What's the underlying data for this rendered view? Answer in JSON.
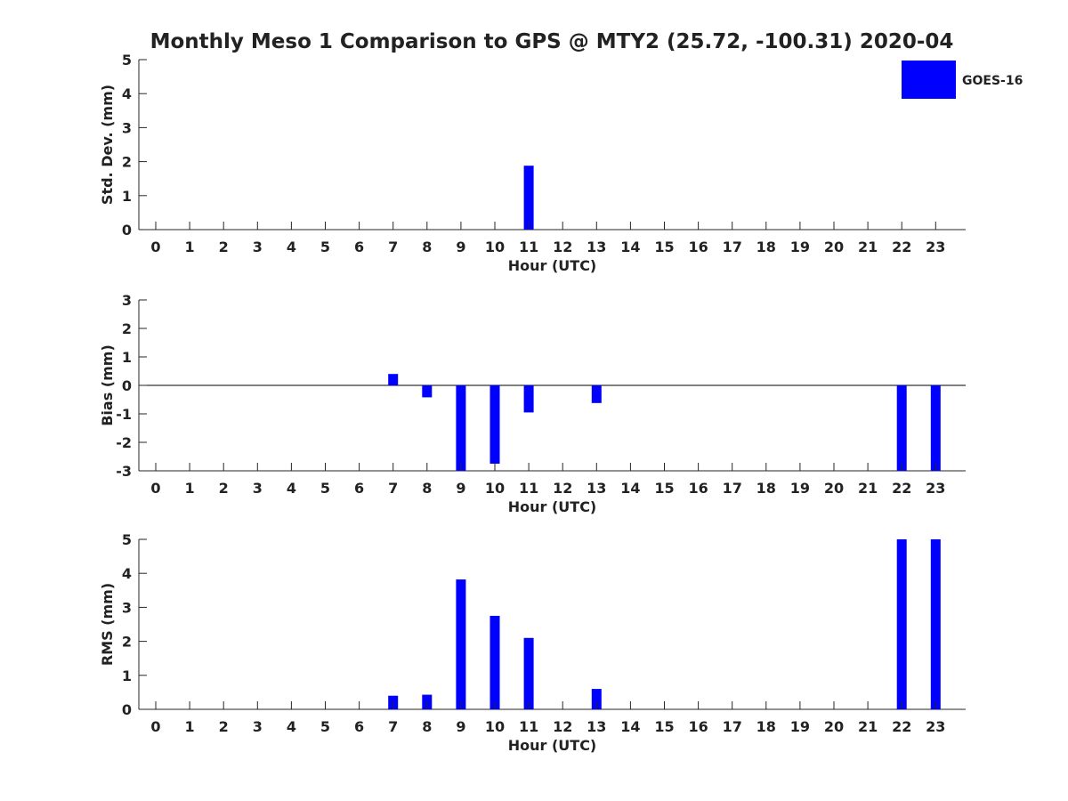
{
  "figure": {
    "title": "Monthly Meso 1 Comparison to GPS @ MTY2 (25.72, -100.31) 2020-04"
  },
  "legend": {
    "label": "GOES-16",
    "color": "#0000ff",
    "placement": "top-right"
  },
  "chart_data": [
    {
      "type": "bar",
      "xlabel": "Hour (UTC)",
      "ylabel": "Std. Dev. (mm)",
      "ylim": [
        0,
        5
      ],
      "yticks": [
        0,
        1,
        2,
        3,
        4,
        5
      ],
      "categories": [
        "0",
        "1",
        "2",
        "3",
        "4",
        "5",
        "6",
        "7",
        "8",
        "9",
        "10",
        "11",
        "12",
        "13",
        "14",
        "15",
        "16",
        "17",
        "18",
        "19",
        "20",
        "21",
        "22",
        "23"
      ],
      "series": [
        {
          "name": "GOES-16",
          "color": "#0000ff",
          "values": [
            null,
            null,
            null,
            null,
            null,
            null,
            null,
            null,
            null,
            null,
            null,
            1.88,
            null,
            null,
            null,
            null,
            null,
            null,
            null,
            null,
            null,
            null,
            null,
            null
          ]
        }
      ],
      "grid": false
    },
    {
      "type": "bar",
      "xlabel": "Hour (UTC)",
      "ylabel": "Bias (mm)",
      "ylim": [
        -3,
        3
      ],
      "yticks": [
        -3,
        -2,
        -1,
        0,
        1,
        2,
        3
      ],
      "zero_line": true,
      "categories": [
        "0",
        "1",
        "2",
        "3",
        "4",
        "5",
        "6",
        "7",
        "8",
        "9",
        "10",
        "11",
        "12",
        "13",
        "14",
        "15",
        "16",
        "17",
        "18",
        "19",
        "20",
        "21",
        "22",
        "23"
      ],
      "series": [
        {
          "name": "GOES-16",
          "color": "#0000ff",
          "values": [
            null,
            null,
            null,
            null,
            null,
            null,
            null,
            0.4,
            -0.42,
            -3.0,
            -2.75,
            -0.95,
            null,
            -0.62,
            null,
            null,
            null,
            null,
            null,
            null,
            null,
            null,
            -3.0,
            -3.0
          ]
        }
      ],
      "grid": false
    },
    {
      "type": "bar",
      "xlabel": "Hour (UTC)",
      "ylabel": "RMS (mm)",
      "ylim": [
        0,
        5
      ],
      "yticks": [
        0,
        1,
        2,
        3,
        4,
        5
      ],
      "categories": [
        "0",
        "1",
        "2",
        "3",
        "4",
        "5",
        "6",
        "7",
        "8",
        "9",
        "10",
        "11",
        "12",
        "13",
        "14",
        "15",
        "16",
        "17",
        "18",
        "19",
        "20",
        "21",
        "22",
        "23"
      ],
      "series": [
        {
          "name": "GOES-16",
          "color": "#0000ff",
          "values": [
            null,
            null,
            null,
            null,
            null,
            null,
            null,
            0.4,
            0.43,
            3.82,
            2.75,
            2.1,
            null,
            0.6,
            null,
            null,
            null,
            null,
            null,
            null,
            null,
            null,
            5.0,
            5.0
          ]
        }
      ],
      "grid": false
    }
  ]
}
